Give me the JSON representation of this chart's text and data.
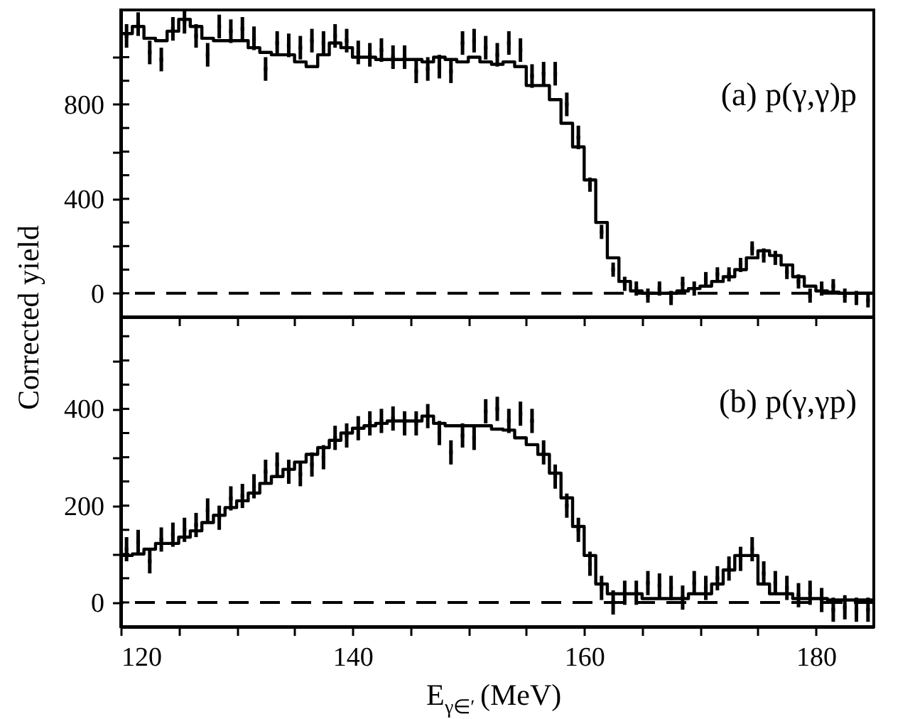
{
  "chart_data": [
    {
      "type": "step",
      "ylabel": "Corrected yield",
      "annotations": [
        "(a) p(γ,γ)p"
      ],
      "tick_labels": "y",
      "xlim": [
        120,
        185
      ],
      "xticks": [
        120,
        {
          "value": 125,
          "label": null
        },
        {
          "value": 130,
          "label": null
        },
        {
          "value": 135,
          "label": null
        },
        140,
        {
          "value": 145,
          "label": null
        },
        {
          "value": 150,
          "label": null
        },
        {
          "value": 155,
          "label": null
        },
        160,
        {
          "value": 165,
          "label": null
        },
        {
          "value": 170,
          "label": null
        },
        {
          "value": 175,
          "label": null
        },
        180
      ],
      "ylim": [
        -100,
        1200
      ],
      "yticks": [
        0,
        {
          "value": 100,
          "label": null
        },
        {
          "value": 200,
          "label": null
        },
        {
          "value": 300,
          "label": null
        },
        400,
        {
          "value": 500,
          "label": null
        },
        {
          "value": 600,
          "label": null
        },
        {
          "value": 700,
          "label": null
        },
        800,
        {
          "value": 900,
          "label": null
        },
        {
          "value": 1000,
          "label": null
        },
        {
          "value": 1100,
          "label": null
        }
      ],
      "ref_lines": [
        {
          "axis": "y",
          "value": 0,
          "line_style": "dashed",
          "color": "#000000"
        }
      ],
      "series": [
        {
          "type": "step",
          "color": "#000000",
          "x": [
            120,
            121,
            122,
            123,
            124,
            125,
            126,
            127,
            128,
            129,
            130,
            131,
            132,
            133,
            134,
            135,
            136,
            137,
            138,
            139,
            140,
            141,
            142,
            143,
            144,
            145,
            146,
            147,
            148,
            149,
            150,
            151,
            152,
            153,
            154,
            155,
            156,
            157,
            158,
            159,
            160,
            161,
            162,
            163,
            164,
            165,
            166,
            167,
            168,
            169,
            170,
            171,
            172,
            173,
            174,
            175,
            176,
            177,
            178,
            179,
            180,
            181,
            182,
            183,
            184,
            185
          ],
          "values": [
            1100,
            1130,
            1080,
            1070,
            1110,
            1160,
            1130,
            1080,
            1070,
            1070,
            1070,
            1040,
            1020,
            1010,
            1010,
            980,
            960,
            1010,
            1060,
            1040,
            1000,
            1000,
            990,
            990,
            990,
            990,
            980,
            1000,
            990,
            980,
            1000,
            980,
            970,
            980,
            960,
            880,
            880,
            820,
            720,
            620,
            480,
            300,
            150,
            50,
            10,
            0,
            0,
            0,
            10,
            20,
            30,
            50,
            70,
            100,
            150,
            180,
            160,
            120,
            70,
            30,
            10,
            5,
            0,
            0,
            0,
            0
          ]
        },
        {
          "type": "scatter",
          "marker": "square",
          "color": "#000000",
          "x": [
            120.5,
            121.5,
            122.5,
            123.5,
            124.5,
            125.5,
            126.5,
            127.5,
            128.5,
            129.5,
            130.5,
            131.5,
            132.5,
            133.5,
            134.5,
            135.5,
            136.5,
            137.5,
            138.5,
            139.5,
            140.5,
            141.5,
            142.5,
            143.5,
            144.5,
            145.5,
            146.5,
            147.5,
            148.5,
            149.5,
            150.5,
            151.5,
            152.5,
            153.5,
            154.5,
            155.5,
            156.5,
            157.5,
            158.5,
            159.5,
            160.5,
            161.5,
            162.5,
            163.5,
            164.5,
            165.5,
            166.5,
            167.5,
            168.5,
            169.5,
            170.5,
            171.5,
            172.5,
            173.5,
            174.5,
            175.5,
            176.5,
            177.5,
            178.5,
            179.5,
            180.5,
            181.5,
            182.5,
            183.5,
            184.5
          ],
          "values": [
            1090,
            1140,
            1020,
            990,
            1120,
            1150,
            1090,
            1010,
            1130,
            1110,
            1120,
            1080,
            950,
            1060,
            1050,
            1040,
            1070,
            1060,
            1090,
            1070,
            1020,
            1010,
            1030,
            1000,
            1000,
            940,
            950,
            960,
            940,
            1060,
            1070,
            1040,
            1010,
            1060,
            1030,
            920,
            930,
            930,
            800,
            660,
            460,
            260,
            100,
            40,
            20,
            -10,
            20,
            -20,
            40,
            20,
            60,
            80,
            80,
            120,
            190,
            160,
            150,
            90,
            50,
            -10,
            20,
            30,
            -10,
            -20,
            -30
          ],
          "errors": [
            50,
            50,
            50,
            50,
            50,
            50,
            50,
            50,
            50,
            50,
            50,
            50,
            50,
            50,
            50,
            50,
            50,
            50,
            50,
            50,
            50,
            50,
            50,
            50,
            50,
            50,
            50,
            50,
            50,
            50,
            50,
            50,
            50,
            50,
            50,
            50,
            50,
            50,
            50,
            50,
            30,
            30,
            30,
            30,
            30,
            30,
            30,
            30,
            30,
            30,
            30,
            30,
            30,
            30,
            30,
            30,
            30,
            30,
            30,
            30,
            30,
            30,
            30,
            30,
            30
          ]
        }
      ]
    },
    {
      "type": "step",
      "xlabel": "E$_{γ∈′}$ (MeV)",
      "annotations": [
        "(b) p(γ,γp)"
      ],
      "xlim": [
        120,
        185
      ],
      "xticks": [
        120,
        {
          "value": 125,
          "label": null
        },
        {
          "value": 130,
          "label": null
        },
        {
          "value": 135,
          "label": null
        },
        140,
        {
          "value": 145,
          "label": null
        },
        {
          "value": 150,
          "label": null
        },
        {
          "value": 155,
          "label": null
        },
        160,
        {
          "value": 165,
          "label": null
        },
        {
          "value": 170,
          "label": null
        },
        {
          "value": 175,
          "label": null
        },
        180
      ],
      "ylim": [
        -50,
        590
      ],
      "yticks": [
        0,
        {
          "value": 50,
          "label": null
        },
        {
          "value": 100,
          "label": null
        },
        {
          "value": 150,
          "label": null
        },
        200,
        {
          "value": 250,
          "label": null
        },
        {
          "value": 300,
          "label": null
        },
        {
          "value": 350,
          "label": null
        },
        400,
        {
          "value": 450,
          "label": null
        },
        {
          "value": 500,
          "label": null
        },
        {
          "value": 550,
          "label": null
        }
      ],
      "ref_lines": [
        {
          "axis": "y",
          "value": 0,
          "line_style": "dashed",
          "color": "#000000"
        }
      ],
      "series": [
        {
          "type": "step",
          "color": "#000000",
          "x": [
            120,
            121,
            122,
            123,
            124,
            125,
            126,
            127,
            128,
            129,
            130,
            131,
            132,
            133,
            134,
            135,
            136,
            137,
            138,
            139,
            140,
            141,
            142,
            143,
            144,
            145,
            146,
            147,
            148,
            149,
            150,
            151,
            152,
            153,
            154,
            155,
            156,
            157,
            158,
            159,
            160,
            161,
            162,
            163,
            164,
            165,
            166,
            167,
            168,
            169,
            170,
            171,
            172,
            173,
            174,
            175,
            176,
            177,
            178,
            179,
            180,
            181,
            182,
            183,
            184,
            185
          ],
          "values": [
            97,
            100,
            110,
            122,
            122,
            135,
            148,
            165,
            180,
            196,
            210,
            226,
            246,
            260,
            275,
            290,
            306,
            320,
            335,
            350,
            360,
            365,
            370,
            375,
            375,
            375,
            385,
            370,
            365,
            365,
            365,
            365,
            358,
            356,
            340,
            326,
            306,
            267,
            216,
            157,
            97,
            38,
            18,
            18,
            18,
            8,
            8,
            8,
            8,
            18,
            18,
            38,
            67,
            97,
            97,
            38,
            18,
            18,
            8,
            8,
            8,
            5,
            5,
            5,
            5,
            5
          ]
        },
        {
          "type": "scatter",
          "marker": "square",
          "color": "#000000",
          "x": [
            120.5,
            121.5,
            122.5,
            123.5,
            124.5,
            125.5,
            126.5,
            127.5,
            128.5,
            129.5,
            130.5,
            131.5,
            132.5,
            133.5,
            134.5,
            135.5,
            136.5,
            137.5,
            138.5,
            139.5,
            140.5,
            141.5,
            142.5,
            143.5,
            144.5,
            145.5,
            146.5,
            147.5,
            148.5,
            149.5,
            150.5,
            151.5,
            152.5,
            153.5,
            154.5,
            155.5,
            156.5,
            157.5,
            158.5,
            159.5,
            160.5,
            161.5,
            162.5,
            163.5,
            164.5,
            165.5,
            166.5,
            167.5,
            168.5,
            169.5,
            170.5,
            171.5,
            172.5,
            173.5,
            174.5,
            175.5,
            176.5,
            177.5,
            178.5,
            179.5,
            180.5,
            181.5,
            182.5,
            183.5,
            184.5
          ],
          "values": [
            110,
            125,
            85,
            130,
            140,
            150,
            160,
            190,
            175,
            215,
            220,
            240,
            270,
            285,
            270,
            265,
            285,
            300,
            340,
            345,
            360,
            370,
            375,
            380,
            370,
            370,
            385,
            350,
            310,
            345,
            340,
            395,
            400,
            375,
            390,
            375,
            310,
            260,
            200,
            150,
            80,
            30,
            0,
            20,
            20,
            40,
            35,
            30,
            10,
            40,
            30,
            50,
            70,
            90,
            110,
            60,
            40,
            30,
            15,
            20,
            5,
            -15,
            -10,
            -15,
            -15
          ],
          "errors": [
            25,
            25,
            25,
            25,
            25,
            25,
            25,
            25,
            25,
            25,
            25,
            25,
            25,
            25,
            25,
            25,
            25,
            25,
            25,
            25,
            25,
            25,
            25,
            25,
            25,
            25,
            25,
            25,
            25,
            25,
            25,
            25,
            25,
            25,
            25,
            25,
            25,
            25,
            25,
            25,
            25,
            25,
            25,
            25,
            25,
            25,
            25,
            25,
            25,
            25,
            25,
            25,
            25,
            25,
            25,
            25,
            25,
            25,
            25,
            25,
            25,
            25,
            25,
            25,
            25
          ]
        }
      ]
    }
  ]
}
